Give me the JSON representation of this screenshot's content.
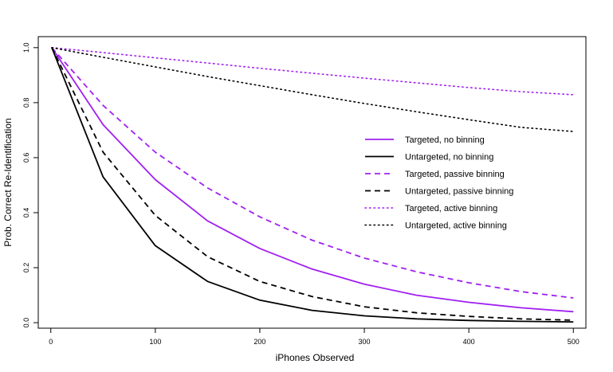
{
  "chart_data": {
    "type": "line",
    "title": "",
    "xlabel": "iPhones Observed",
    "ylabel": "Prob. Correct Re-Identification",
    "xlim": [
      -12,
      512
    ],
    "ylim": [
      -0.02,
      1.04
    ],
    "x_ticks": [
      0,
      100,
      200,
      300,
      400,
      500
    ],
    "y_ticks": [
      0.0,
      0.2,
      0.4,
      0.6,
      0.8,
      1.0
    ],
    "x_tick_labels": [
      "0",
      "100",
      "200",
      "300",
      "400",
      "500"
    ],
    "y_tick_labels": [
      "0.0",
      "0.2",
      "0.4",
      "0.6",
      "0.8",
      "1.0"
    ],
    "grid": false,
    "legend_position": "center-right",
    "x": [
      1,
      50,
      100,
      150,
      200,
      250,
      300,
      350,
      400,
      450,
      500
    ],
    "series": [
      {
        "name": "Targeted, no binning",
        "color": "#a020f0",
        "dash": "solid",
        "values": [
          1.0,
          0.72,
          0.52,
          0.37,
          0.27,
          0.195,
          0.14,
          0.1,
          0.074,
          0.054,
          0.04
        ]
      },
      {
        "name": "Untargeted, no binning",
        "color": "#000000",
        "dash": "solid",
        "values": [
          1.0,
          0.53,
          0.28,
          0.15,
          0.082,
          0.045,
          0.025,
          0.014,
          0.008,
          0.005,
          0.003
        ]
      },
      {
        "name": "Targeted, passive binning",
        "color": "#a020f0",
        "dash": "dashed",
        "values": [
          1.0,
          0.79,
          0.62,
          0.49,
          0.385,
          0.3,
          0.235,
          0.185,
          0.145,
          0.113,
          0.09
        ]
      },
      {
        "name": "Untargeted, passive binning",
        "color": "#000000",
        "dash": "dashed",
        "values": [
          1.0,
          0.62,
          0.39,
          0.24,
          0.15,
          0.095,
          0.058,
          0.036,
          0.023,
          0.014,
          0.009
        ]
      },
      {
        "name": "Targeted, active binning",
        "color": "#a020f0",
        "dash": "dotted",
        "values": [
          1.0,
          0.982,
          0.963,
          0.944,
          0.925,
          0.907,
          0.889,
          0.872,
          0.855,
          0.84,
          0.829
        ]
      },
      {
        "name": "Untargeted, active binning",
        "color": "#000000",
        "dash": "dotted",
        "values": [
          1.0,
          0.965,
          0.93,
          0.895,
          0.862,
          0.829,
          0.797,
          0.767,
          0.738,
          0.71,
          0.695
        ]
      }
    ]
  }
}
